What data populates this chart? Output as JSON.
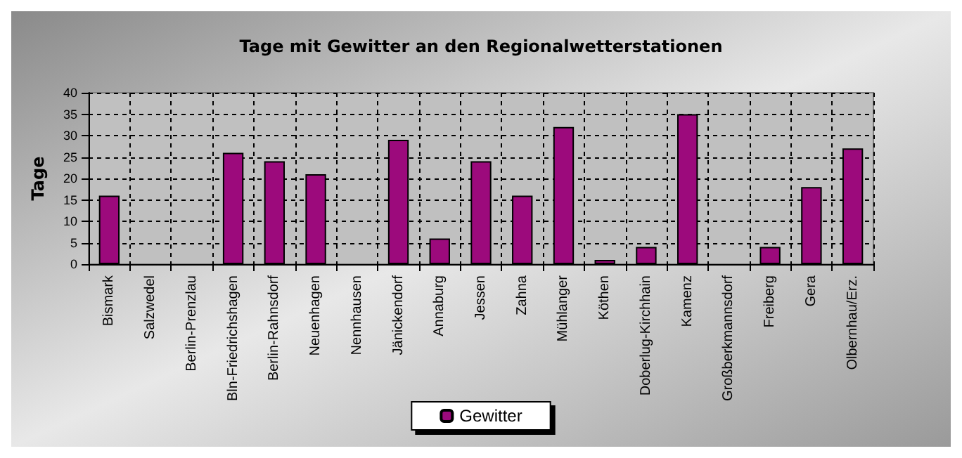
{
  "chart_data": {
    "type": "bar",
    "title": "Tage mit Gewitter an den Regionalwetterstationen",
    "ylabel": "Tage",
    "categories": [
      "Bismark",
      "Salzwedel",
      "Berlin-Prenzlau",
      "Bln-Friedrichshagen",
      "Berlin-Rahnsdorf",
      "Neuenhagen",
      "Nennhausen",
      "Jänickendorf",
      "Annaburg",
      "Jessen",
      "Zahna",
      "Mühlanger",
      "Köthen",
      "Doberlug-Kirchhain",
      "Kamenz",
      "Großberkmannsdorf",
      "Freiberg",
      "Gera",
      "Olbernhau/Erz."
    ],
    "series": [
      {
        "name": "Gewitter",
        "color": "#9c0a7c",
        "values": [
          16,
          0,
          0,
          26,
          24,
          21,
          0,
          29,
          6,
          24,
          16,
          32,
          1,
          4,
          35,
          0,
          4,
          18,
          27
        ]
      }
    ],
    "ylim": [
      0,
      40
    ],
    "yticks": [
      0,
      5,
      10,
      15,
      20,
      25,
      30,
      35,
      40
    ],
    "grid": true,
    "legend": "bottom"
  }
}
